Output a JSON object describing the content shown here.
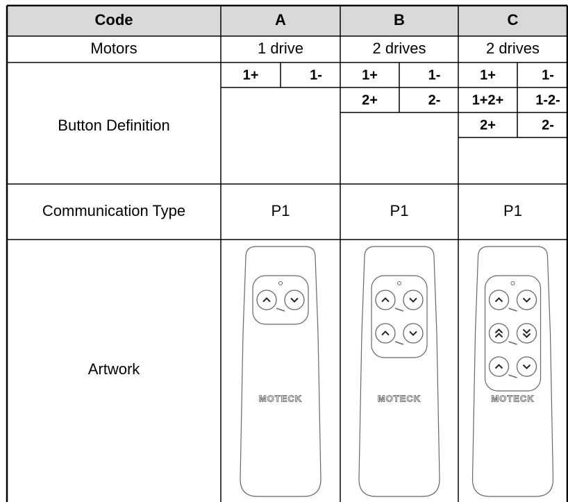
{
  "header": [
    "Code",
    "A",
    "B",
    "C"
  ],
  "motors": {
    "label": "Motors",
    "cells": [
      "1 drive",
      "2 drives",
      "2 drives"
    ]
  },
  "button_definition": {
    "label": "Button Definition",
    "cells": [
      [
        [
          "1+",
          "1-"
        ]
      ],
      [
        [
          "1+",
          "1-"
        ],
        [
          "2+",
          "2-"
        ]
      ],
      [
        [
          "1+",
          "1-"
        ],
        [
          "1+2+",
          "1-2-"
        ],
        [
          "2+",
          "2-"
        ]
      ]
    ]
  },
  "communication_type": {
    "label": "Communication Type",
    "cells": [
      "P1",
      "P1",
      "P1"
    ]
  },
  "artwork": {
    "label": "Artwork",
    "logos": [
      "MOTECK",
      "MOTECK",
      "MOTECK"
    ]
  }
}
